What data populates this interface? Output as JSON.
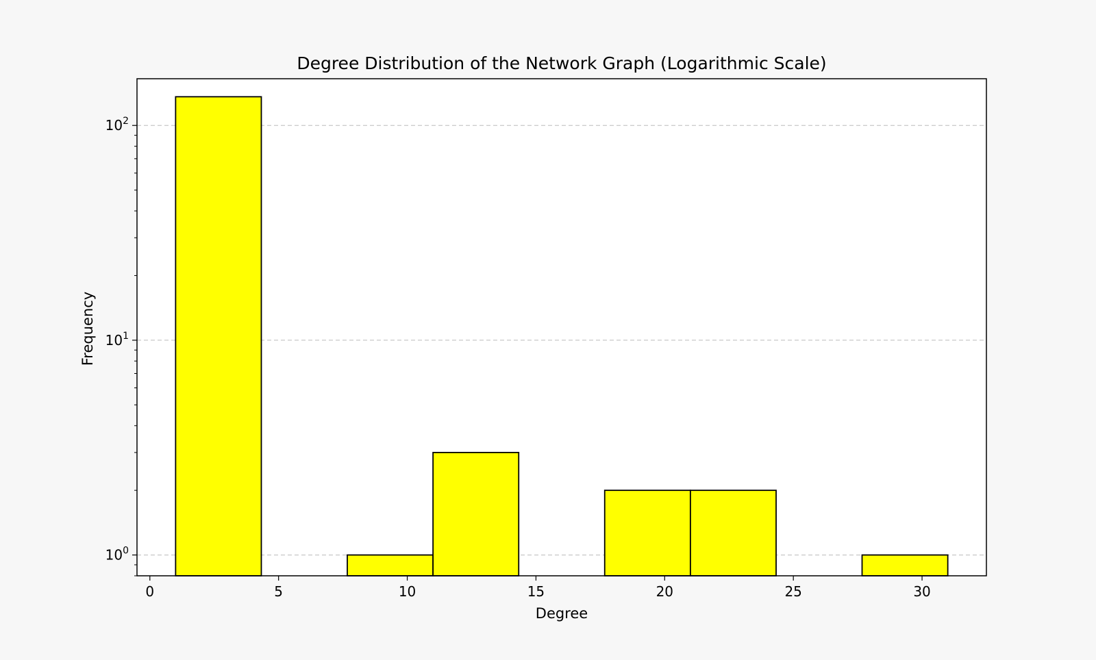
{
  "chart_data": {
    "type": "bar",
    "title": "Degree Distribution of the Network Graph (Logarithmic Scale)",
    "xlabel": "Degree",
    "ylabel": "Frequency",
    "y_scale": "log",
    "xlim": [
      -0.5,
      32.5
    ],
    "ylim": [
      0.8,
      165
    ],
    "grid": {
      "axis": "y",
      "style": "dashed",
      "color": "#c8c8c8"
    },
    "x_ticks": [
      {
        "value": 0,
        "label": "0"
      },
      {
        "value": 5,
        "label": "5"
      },
      {
        "value": 10,
        "label": "10"
      },
      {
        "value": 15,
        "label": "15"
      },
      {
        "value": 20,
        "label": "20"
      },
      {
        "value": 25,
        "label": "25"
      },
      {
        "value": 30,
        "label": "30"
      }
    ],
    "y_ticks": [
      {
        "value": 1,
        "base": "10",
        "exp": "0"
      },
      {
        "value": 10,
        "base": "10",
        "exp": "1"
      },
      {
        "value": 100,
        "base": "10",
        "exp": "2"
      }
    ],
    "bar_color": "#ffff00",
    "edge_color": "#000000",
    "bins": [
      {
        "x0": 1.0,
        "x1": 4.33,
        "count": 136
      },
      {
        "x0": 4.33,
        "x1": 7.67,
        "count": 0
      },
      {
        "x0": 7.67,
        "x1": 11.0,
        "count": 1
      },
      {
        "x0": 11.0,
        "x1": 14.33,
        "count": 3
      },
      {
        "x0": 14.33,
        "x1": 17.67,
        "count": 0
      },
      {
        "x0": 17.67,
        "x1": 21.0,
        "count": 2
      },
      {
        "x0": 21.0,
        "x1": 24.33,
        "count": 2
      },
      {
        "x0": 24.33,
        "x1": 27.67,
        "count": 0
      },
      {
        "x0": 27.67,
        "x1": 31.0,
        "count": 1
      }
    ]
  }
}
